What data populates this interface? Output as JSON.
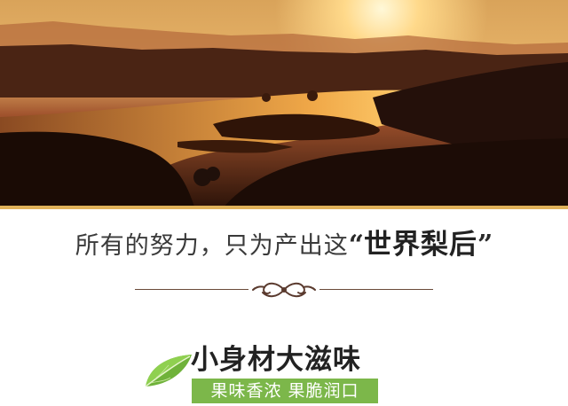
{
  "headline": {
    "lead": "所有的努力，只为产出这",
    "open_quote": "“",
    "brand": "世界梨后",
    "close_quote": "”"
  },
  "feature": {
    "title": "小身材大滋味",
    "tagline": "果味香浓 果脆润口"
  },
  "icons": {
    "divider": "ornament-scroll-icon",
    "leaf": "green-leaf-icon"
  },
  "colors": {
    "hero_border": "#e0b25a",
    "tag_background": "#7cb74a",
    "divider": "#6a4a3a"
  }
}
